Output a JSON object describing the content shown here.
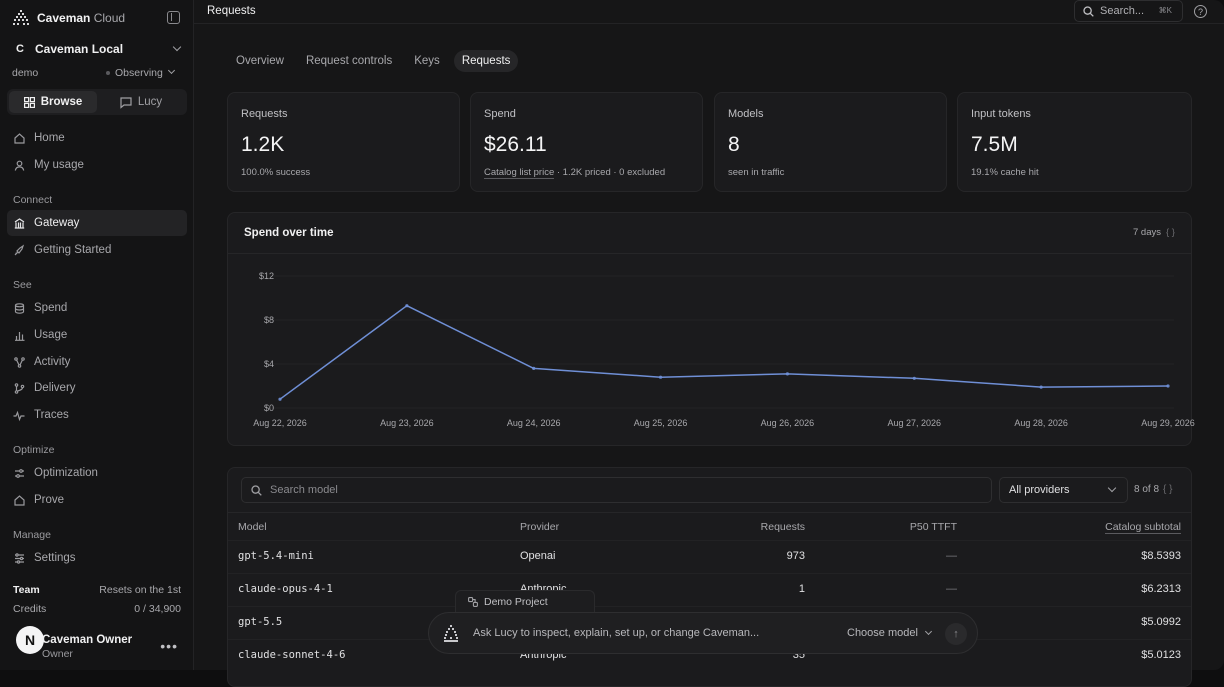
{
  "brand": {
    "name": "Caveman",
    "suffix": "Cloud"
  },
  "org": {
    "badge": "C",
    "name": "Caveman Local"
  },
  "env": {
    "name": "demo",
    "status": "Observing"
  },
  "modes": {
    "browse": "Browse",
    "lucy": "Lucy"
  },
  "nav": {
    "home": "Home",
    "my_usage": "My usage",
    "connect_title": "Connect",
    "gateway": "Gateway",
    "getting_started": "Getting Started",
    "see_title": "See",
    "spend": "Spend",
    "usage": "Usage",
    "activity": "Activity",
    "delivery": "Delivery",
    "traces": "Traces",
    "optimize_title": "Optimize",
    "optimization": "Optimization",
    "prove": "Prove",
    "manage_title": "Manage",
    "settings": "Settings"
  },
  "team": {
    "label": "Team",
    "reset": "Resets on the 1st",
    "credits_label": "Credits",
    "credits_value": "0 / 34,900"
  },
  "user": {
    "initial": "N",
    "name": "Caveman Owner",
    "role": "Owner"
  },
  "topbar": {
    "title": "Requests",
    "search_placeholder": "Search...",
    "shortcut": "⌘K",
    "help": "?"
  },
  "tabs": [
    "Overview",
    "Request controls",
    "Keys",
    "Requests"
  ],
  "stats": [
    {
      "label": "Requests",
      "value": "1.2K",
      "sub": "100.0% success"
    },
    {
      "label": "Spend",
      "value": "$26.11",
      "sub_link": "Catalog list price",
      "sub": " · 1.2K priced · 0 excluded"
    },
    {
      "label": "Models",
      "value": "8",
      "sub": "seen in traffic"
    },
    {
      "label": "Input tokens",
      "value": "7.5M",
      "sub": "19.1% cache hit"
    }
  ],
  "chart": {
    "title": "Spend over time",
    "range": "7 days",
    "range_icon": "{ }"
  },
  "chart_data": {
    "type": "line",
    "title": "Spend over time",
    "x": [
      "Aug 22, 2026",
      "Aug 23, 2026",
      "Aug 24, 2026",
      "Aug 25, 2026",
      "Aug 26, 2026",
      "Aug 27, 2026",
      "Aug 28, 2026",
      "Aug 29, 2026"
    ],
    "series": [
      {
        "values": [
          0.8,
          9.3,
          3.6,
          2.8,
          3.1,
          2.7,
          1.9,
          2.0
        ]
      }
    ],
    "yticks": [
      "$0",
      "$4",
      "$8",
      "$12"
    ],
    "ytick_values": [
      0,
      4,
      8,
      12
    ],
    "ylim": [
      0,
      12
    ],
    "grid": true,
    "line_color": "#6f8fd6"
  },
  "table": {
    "search_placeholder": "Search model",
    "provider_filter": "All providers",
    "count": "8 of 8",
    "count_icon": "{ }",
    "columns": [
      "Model",
      "Provider",
      "Requests",
      "P50 TTFT",
      "Catalog subtotal"
    ],
    "rows": [
      {
        "model": "gpt-5.4-mini",
        "provider": "Openai",
        "requests": "973",
        "ttft": "—",
        "subtotal": "$8.5393"
      },
      {
        "model": "claude-opus-4-1",
        "provider": "Anthropic",
        "requests": "1",
        "ttft": "—",
        "subtotal": "$6.2313"
      },
      {
        "model": "gpt-5.5",
        "provider": "",
        "requests": "",
        "ttft": "",
        "subtotal": "$5.0992"
      },
      {
        "model": "claude-sonnet-4-6",
        "provider": "Anthropic",
        "requests": "35",
        "ttft": "",
        "subtotal": "$5.0123"
      }
    ]
  },
  "lucy": {
    "project": "Demo Project",
    "placeholder": "Ask Lucy to inspect, explain, set up, or change Caveman...",
    "choose_model": "Choose model",
    "send": "↑"
  }
}
